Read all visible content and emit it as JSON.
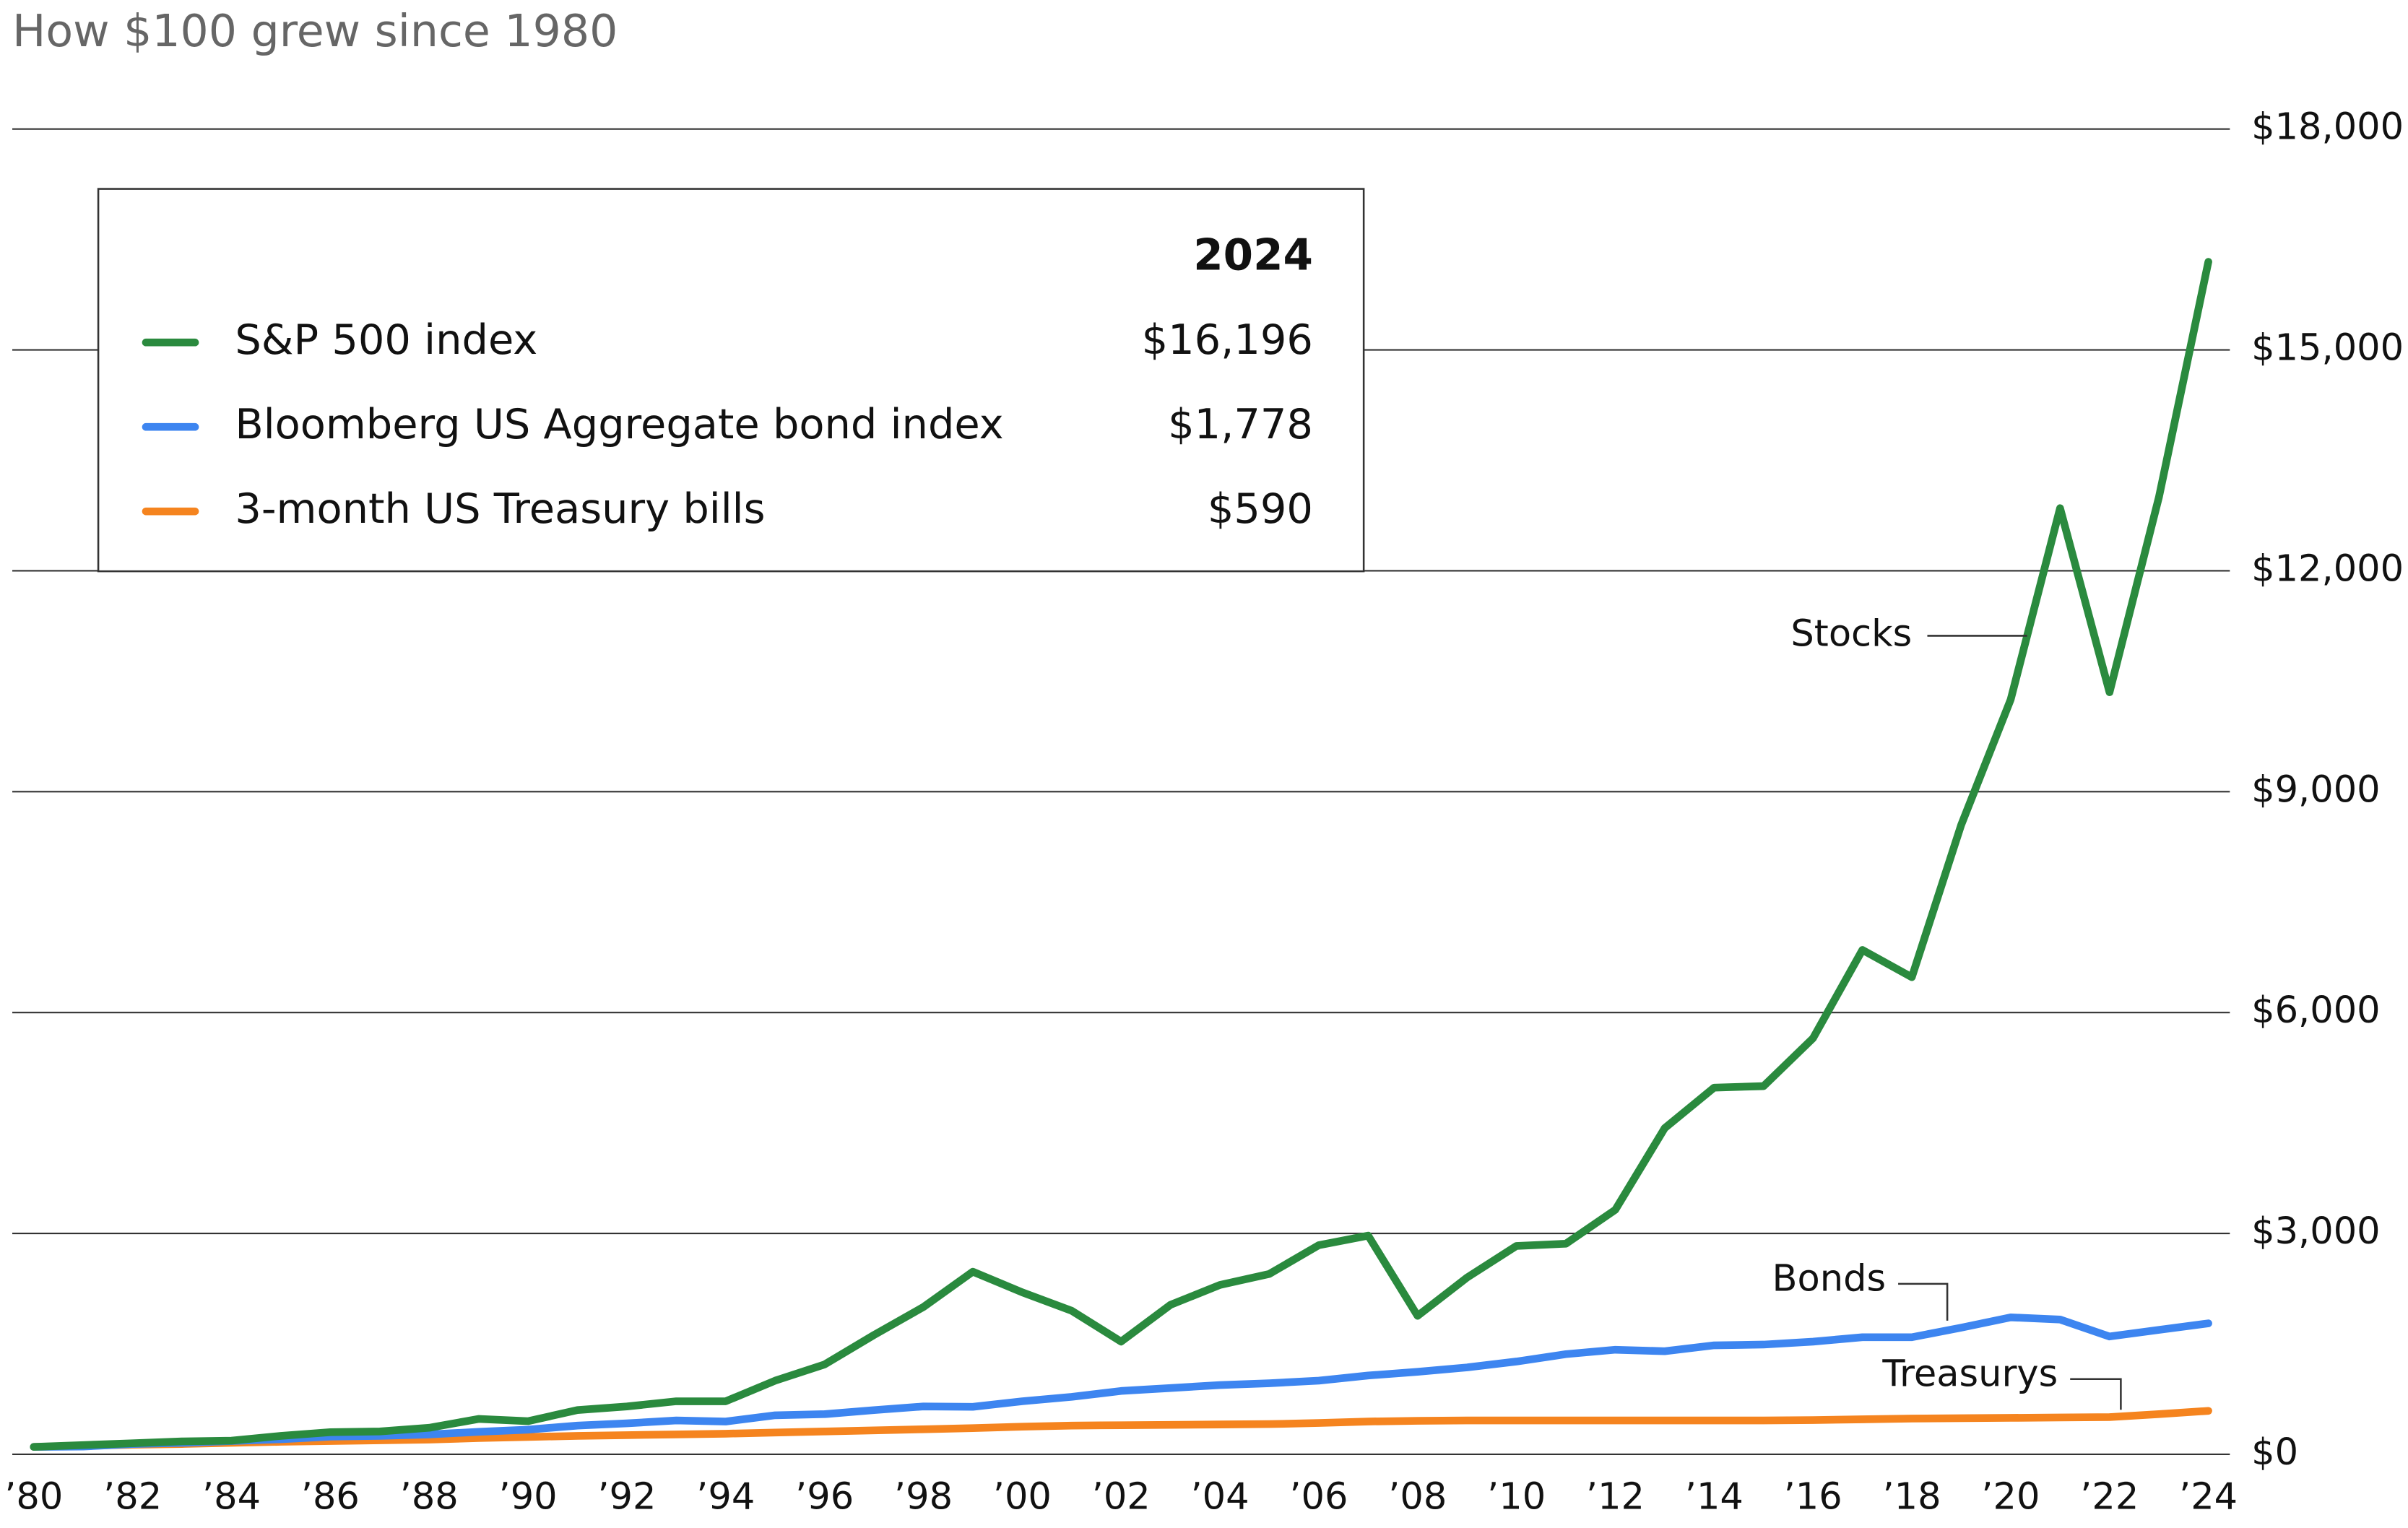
{
  "chart_data": {
    "type": "line",
    "title": "How $100 grew since 1980",
    "x": [
      1980,
      1981,
      1982,
      1983,
      1984,
      1985,
      1986,
      1987,
      1988,
      1989,
      1990,
      1991,
      1992,
      1993,
      1994,
      1995,
      1996,
      1997,
      1998,
      1999,
      2000,
      2001,
      2002,
      2003,
      2004,
      2005,
      2006,
      2007,
      2008,
      2009,
      2010,
      2011,
      2012,
      2013,
      2014,
      2015,
      2016,
      2017,
      2018,
      2019,
      2020,
      2021,
      2022,
      2023,
      2024
    ],
    "xlim": [
      1980,
      2024
    ],
    "xticks": [
      {
        "value": 1980,
        "label": "’80"
      },
      {
        "value": 1982,
        "label": "’82"
      },
      {
        "value": 1984,
        "label": "’84"
      },
      {
        "value": 1986,
        "label": "’86"
      },
      {
        "value": 1988,
        "label": "’88"
      },
      {
        "value": 1990,
        "label": "’90"
      },
      {
        "value": 1992,
        "label": "’92"
      },
      {
        "value": 1994,
        "label": "’94"
      },
      {
        "value": 1996,
        "label": "’96"
      },
      {
        "value": 1998,
        "label": "’98"
      },
      {
        "value": 2000,
        "label": "’00"
      },
      {
        "value": 2002,
        "label": "’02"
      },
      {
        "value": 2004,
        "label": "’04"
      },
      {
        "value": 2006,
        "label": "’06"
      },
      {
        "value": 2008,
        "label": "’08"
      },
      {
        "value": 2010,
        "label": "’10"
      },
      {
        "value": 2012,
        "label": "’12"
      },
      {
        "value": 2014,
        "label": "’14"
      },
      {
        "value": 2016,
        "label": "’16"
      },
      {
        "value": 2018,
        "label": "’18"
      },
      {
        "value": 2020,
        "label": "’20"
      },
      {
        "value": 2022,
        "label": "’22"
      },
      {
        "value": 2024,
        "label": "’24"
      }
    ],
    "ylim": [
      0,
      18000
    ],
    "yticks": [
      {
        "value": 0,
        "label": "$0"
      },
      {
        "value": 3000,
        "label": "$3,000"
      },
      {
        "value": 6000,
        "label": "$6,000"
      },
      {
        "value": 9000,
        "label": "$9,000"
      },
      {
        "value": 12000,
        "label": "$12,000"
      },
      {
        "value": 15000,
        "label": "$15,000"
      },
      {
        "value": 18000,
        "label": "$18,000"
      }
    ],
    "grid": true,
    "legend_header": "2024",
    "series": [
      {
        "name": "S&P 500 index",
        "color": "#2a8a3e",
        "values": [
          100,
          125,
          150,
          175,
          185,
          250,
          300,
          310,
          360,
          480,
          450,
          600,
          650,
          720,
          720,
          1000,
          1220,
          1620,
          2000,
          2480,
          2200,
          1950,
          1530,
          2030,
          2300,
          2450,
          2840,
          2970,
          1880,
          2400,
          2830,
          2860,
          3320,
          4430,
          4980,
          5000,
          5650,
          6850,
          6480,
          8550,
          10250,
          12850,
          10350,
          13000,
          16196
        ],
        "value_labels": [
          null,
          null,
          null,
          null,
          null,
          null,
          null,
          null,
          null,
          null,
          null,
          null,
          null,
          null,
          null,
          null,
          null,
          null,
          null,
          null,
          null,
          null,
          null,
          null,
          null,
          null,
          null,
          null,
          null,
          null,
          null,
          null,
          null,
          null,
          null,
          null,
          null,
          null,
          null,
          null,
          null,
          null,
          null,
          null,
          "$16,196"
        ]
      },
      {
        "name": "Bloomberg US Aggregate bond index",
        "color": "#3d85f0",
        "values": [
          100,
          105,
          140,
          155,
          180,
          205,
          240,
          250,
          270,
          305,
          335,
          390,
          420,
          460,
          445,
          530,
          545,
          600,
          650,
          645,
          720,
          780,
          860,
          900,
          940,
          965,
          1000,
          1070,
          1120,
          1180,
          1260,
          1360,
          1420,
          1400,
          1480,
          1490,
          1530,
          1590,
          1590,
          1720,
          1860,
          1830,
          1600,
          1690,
          1778
        ],
        "value_labels": [
          null,
          null,
          null,
          null,
          null,
          null,
          null,
          null,
          null,
          null,
          null,
          null,
          null,
          null,
          null,
          null,
          null,
          null,
          null,
          null,
          null,
          null,
          null,
          null,
          null,
          null,
          null,
          null,
          null,
          null,
          null,
          null,
          null,
          null,
          null,
          null,
          null,
          null,
          null,
          null,
          null,
          null,
          null,
          null,
          "$1,778"
        ]
      },
      {
        "name": "3-month US Treasury bills",
        "color": "#f5841f",
        "values": [
          100,
          115,
          130,
          140,
          155,
          170,
          180,
          190,
          200,
          220,
          235,
          250,
          260,
          270,
          280,
          295,
          310,
          325,
          340,
          355,
          375,
          390,
          395,
          400,
          405,
          410,
          425,
          445,
          455,
          460,
          460,
          460,
          460,
          460,
          460,
          460,
          465,
          475,
          485,
          490,
          495,
          500,
          505,
          545,
          590
        ],
        "value_labels": [
          null,
          null,
          null,
          null,
          null,
          null,
          null,
          null,
          null,
          null,
          null,
          null,
          null,
          null,
          null,
          null,
          null,
          null,
          null,
          null,
          null,
          null,
          null,
          null,
          null,
          null,
          null,
          null,
          null,
          null,
          null,
          null,
          null,
          null,
          null,
          null,
          null,
          null,
          null,
          null,
          null,
          null,
          null,
          null,
          "$590"
        ]
      }
    ],
    "annotations": [
      "Stocks",
      "Bonds",
      "Treasurys"
    ]
  }
}
